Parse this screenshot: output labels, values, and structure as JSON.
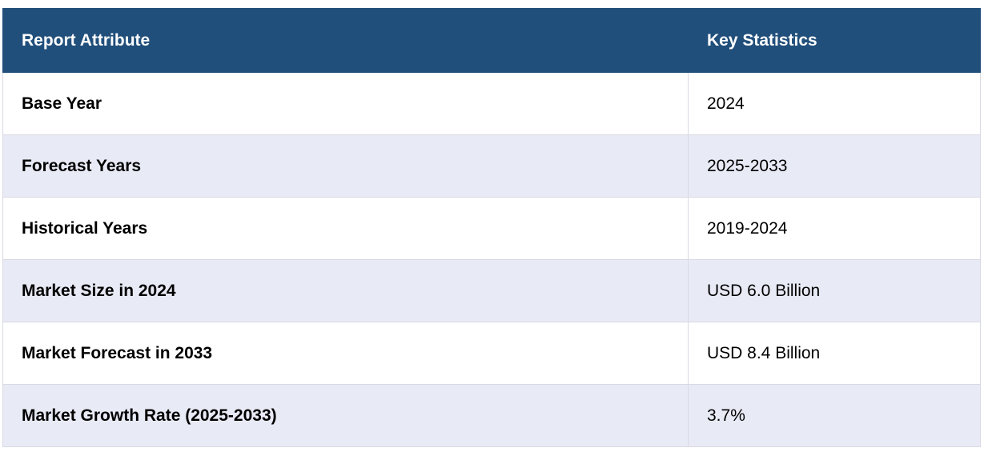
{
  "table": {
    "header": [
      "Report Attribute",
      "Key Statistics"
    ],
    "rows": [
      [
        "Base Year",
        "2024"
      ],
      [
        "Forecast Years",
        "2025-2033"
      ],
      [
        "Historical Years",
        "2019-2024"
      ],
      [
        "Market Size in 2024",
        "USD 6.0 Billion"
      ],
      [
        "Market Forecast in 2033",
        "USD 8.4 Billion"
      ],
      [
        "Market Growth Rate (2025-2033)",
        "3.7%"
      ]
    ]
  }
}
